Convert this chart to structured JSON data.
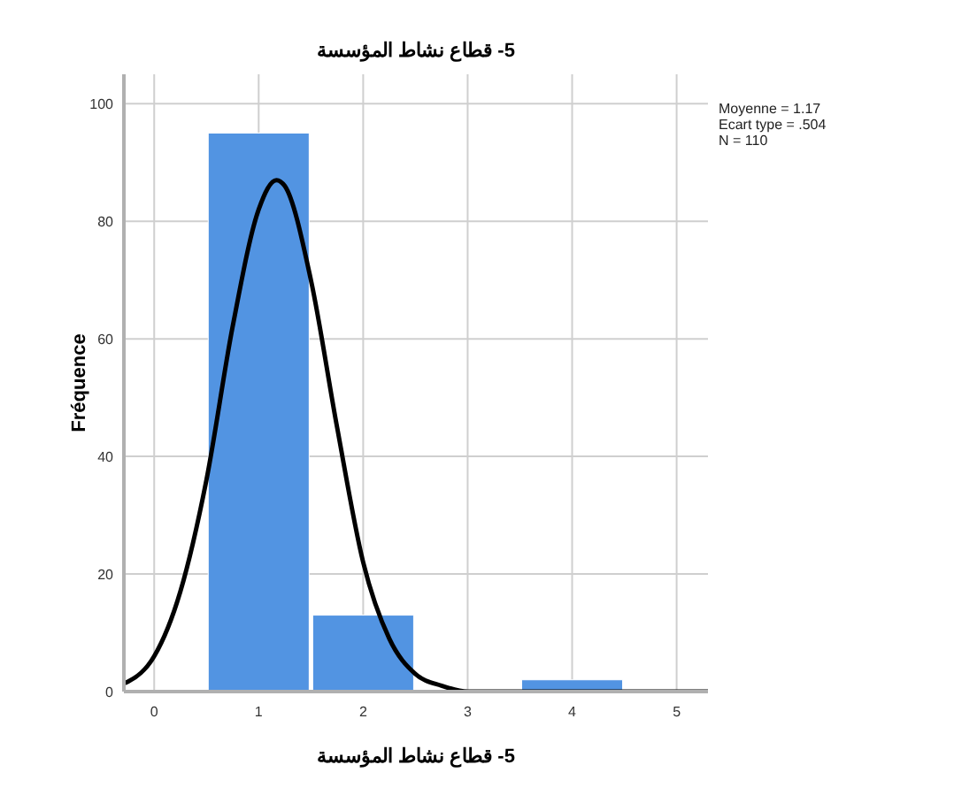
{
  "chart_data": {
    "type": "histogram",
    "title": "5- قطاع نشاط المؤسسة",
    "xlabel": "5- قطاع نشاط المؤسسة",
    "ylabel": "Fréquence",
    "bins": [
      0.5,
      1.5,
      2.5,
      3.5,
      4.5
    ],
    "values": [
      95,
      13,
      0,
      2
    ],
    "color": "#5294e2",
    "series": [
      {
        "type": "line",
        "color": "#000000",
        "x": [
          -0.29,
          -0.25,
          0,
          0.25,
          0.5,
          0.75,
          1,
          1.17,
          1.25,
          1.5,
          1.75,
          2,
          2.25,
          2.5,
          2.75,
          3,
          3.5,
          4,
          4.5,
          5,
          5.3
        ],
        "values": [
          1.4,
          1.7,
          6,
          17,
          36,
          62,
          82,
          87,
          86,
          70,
          45,
          22,
          9,
          3,
          1,
          0,
          0,
          0,
          0,
          0,
          0
        ]
      }
    ],
    "xlim": [
      -0.29,
      5.3
    ],
    "ylim": [
      0,
      105
    ],
    "xticks": [
      0,
      1,
      2,
      3,
      4,
      5
    ],
    "yticks": [
      0,
      20,
      40,
      60,
      80,
      100
    ],
    "grid": true,
    "annotations": [
      "Moyenne = 1.17",
      "Ecart type = .504",
      "N = 110"
    ]
  }
}
